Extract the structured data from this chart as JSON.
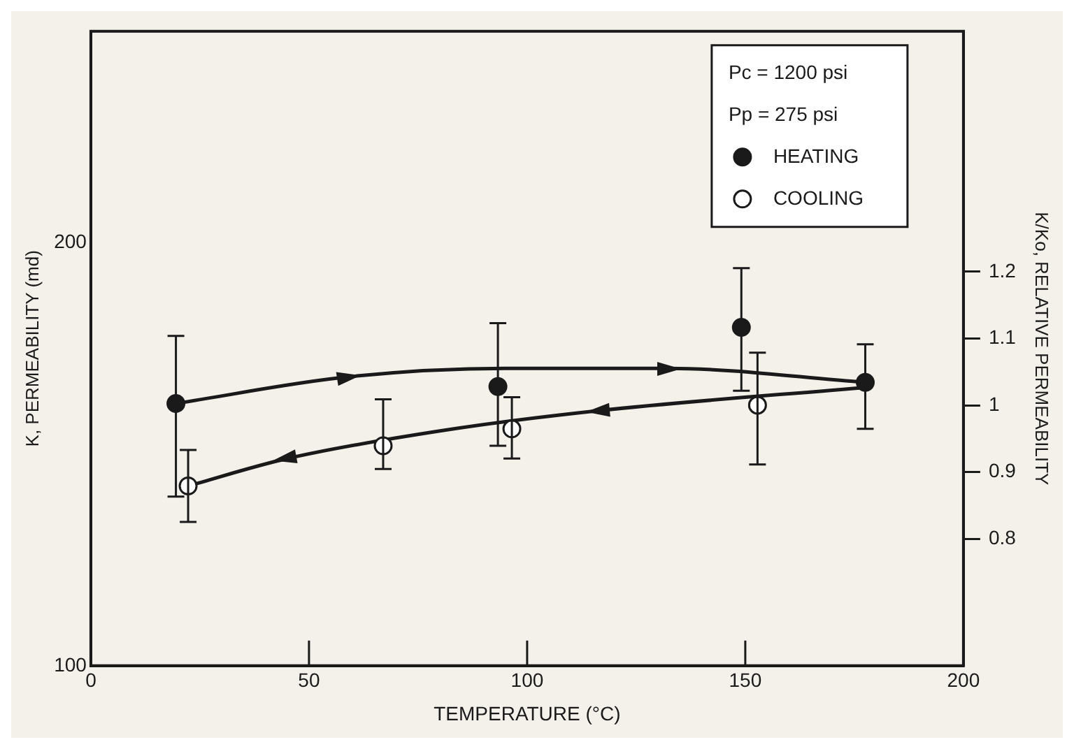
{
  "chart_data": {
    "type": "scatter",
    "xlabel": "TEMPERATURE (°C)",
    "ylabel": "K, PERMEABILITY (md)",
    "y2label": "K/Ko, RELATIVE PERMEABILITY",
    "xlim": [
      0,
      200
    ],
    "xticks": [
      0,
      50,
      100,
      150,
      200
    ],
    "ylim": [
      100,
      250
    ],
    "yticks": [
      100,
      200
    ],
    "y2lim": [
      0.61,
      1.56
    ],
    "y2ticks": [
      0.8,
      0.9,
      1.0,
      1.1,
      1.2
    ],
    "grid": false,
    "legend": "top right",
    "marker": "circle",
    "annotations": [
      "Pc = 1200 psi",
      "Pp = 275 psi"
    ],
    "series": [
      {
        "name": "HEATING",
        "color": "#1a1a1a",
        "x": [
          19.5,
          93.3,
          149.1,
          177.5
        ],
        "values": [
          162,
          166,
          180,
          167
        ],
        "errors": [
          [
            140,
            178
          ],
          [
            152,
            181
          ],
          [
            165,
            194
          ],
          [
            156,
            176
          ]
        ]
      },
      {
        "name": "COOLING",
        "color": "#ffffff",
        "x": [
          22.3,
          67,
          96.5,
          152.8
        ],
        "values": [
          142.5,
          152,
          156,
          161.6
        ],
        "errors": [
          [
            134,
            151
          ],
          [
            146.5,
            163
          ],
          [
            149,
            163.5
          ],
          [
            147.6,
            174
          ]
        ]
      },
      {
        "type": "line",
        "color": "#1a1a1a",
        "marker": "none",
        "x": [
          19.5,
          59,
          95,
          132.4,
          177.5
        ],
        "values": [
          162,
          168.3,
          170.3,
          170.3,
          167
        ]
      },
      {
        "type": "line",
        "color": "#1a1a1a",
        "marker": "none",
        "x": [
          178.6,
          116.4,
          80,
          44.7,
          22.3
        ],
        "values": [
          165.9,
          160.3,
          155.5,
          148.9,
          142.5
        ]
      }
    ]
  }
}
